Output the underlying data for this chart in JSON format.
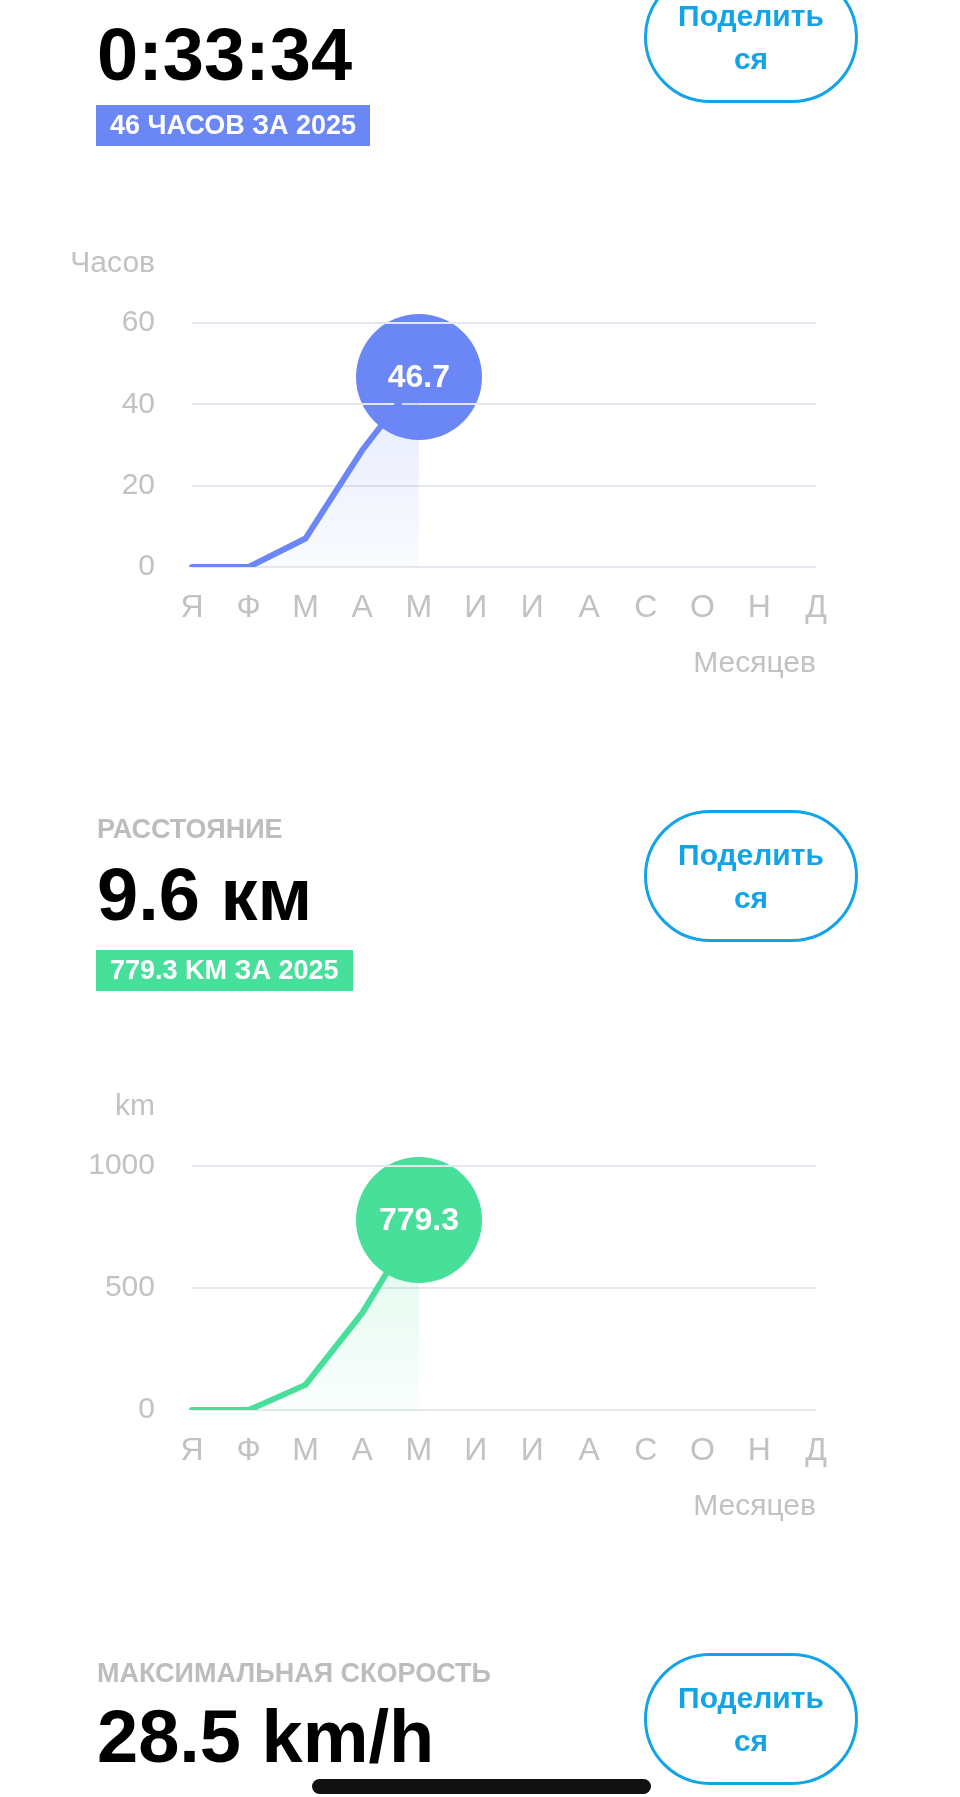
{
  "chart_data": [
    {
      "type": "other",
      "subtitle": "0:33:34",
      "color": "#6b86f5",
      "annotations": [
        "46 ЧАСОВ ЗА 2025",
        "Поделиться"
      ]
    },
    {
      "type": "area",
      "categories": [
        "Я",
        "Ф",
        "М",
        "А",
        "М",
        "И",
        "И",
        "А",
        "С",
        "О",
        "Н",
        "Д"
      ],
      "ylabel": "Часов",
      "xlabel": "Месяцев",
      "ylim": [
        0,
        60
      ],
      "yticks": [
        0,
        20,
        40,
        60
      ],
      "grid": "y",
      "marker": "none",
      "series": [
        {
          "color": "#6b86f5",
          "values": [
            0,
            0,
            7,
            28.7,
            46.7,
            null,
            null,
            null,
            null,
            null,
            null,
            null
          ],
          "value_labels": [
            null,
            null,
            null,
            null,
            "46.7",
            null,
            null,
            null,
            null,
            null,
            null,
            null
          ]
        }
      ]
    },
    {
      "type": "other",
      "title": "РАССТОЯНИЕ",
      "subtitle": "9.6 км",
      "color": "#48df9a",
      "annotations": [
        "779.3 KM ЗА 2025",
        "Поделиться"
      ]
    },
    {
      "type": "area",
      "categories": [
        "Я",
        "Ф",
        "М",
        "А",
        "М",
        "И",
        "И",
        "А",
        "С",
        "О",
        "Н",
        "Д"
      ],
      "ylabel": "km",
      "xlabel": "Месяцев",
      "ylim": [
        0,
        1000
      ],
      "yticks": [
        0,
        500,
        1000
      ],
      "grid": "y",
      "marker": "none",
      "series": [
        {
          "color": "#48df9a",
          "values": [
            0,
            0,
            103,
            397,
            779.3,
            null,
            null,
            null,
            null,
            null,
            null,
            null
          ],
          "value_labels": [
            null,
            null,
            null,
            null,
            "779.3",
            null,
            null,
            null,
            null,
            null,
            null,
            null
          ]
        }
      ]
    },
    {
      "type": "other",
      "title": "МАКСИМАЛЬНАЯ СКОРОСТЬ",
      "subtitle": "28.5 km/h",
      "annotations": [
        "Поделиться"
      ]
    }
  ]
}
